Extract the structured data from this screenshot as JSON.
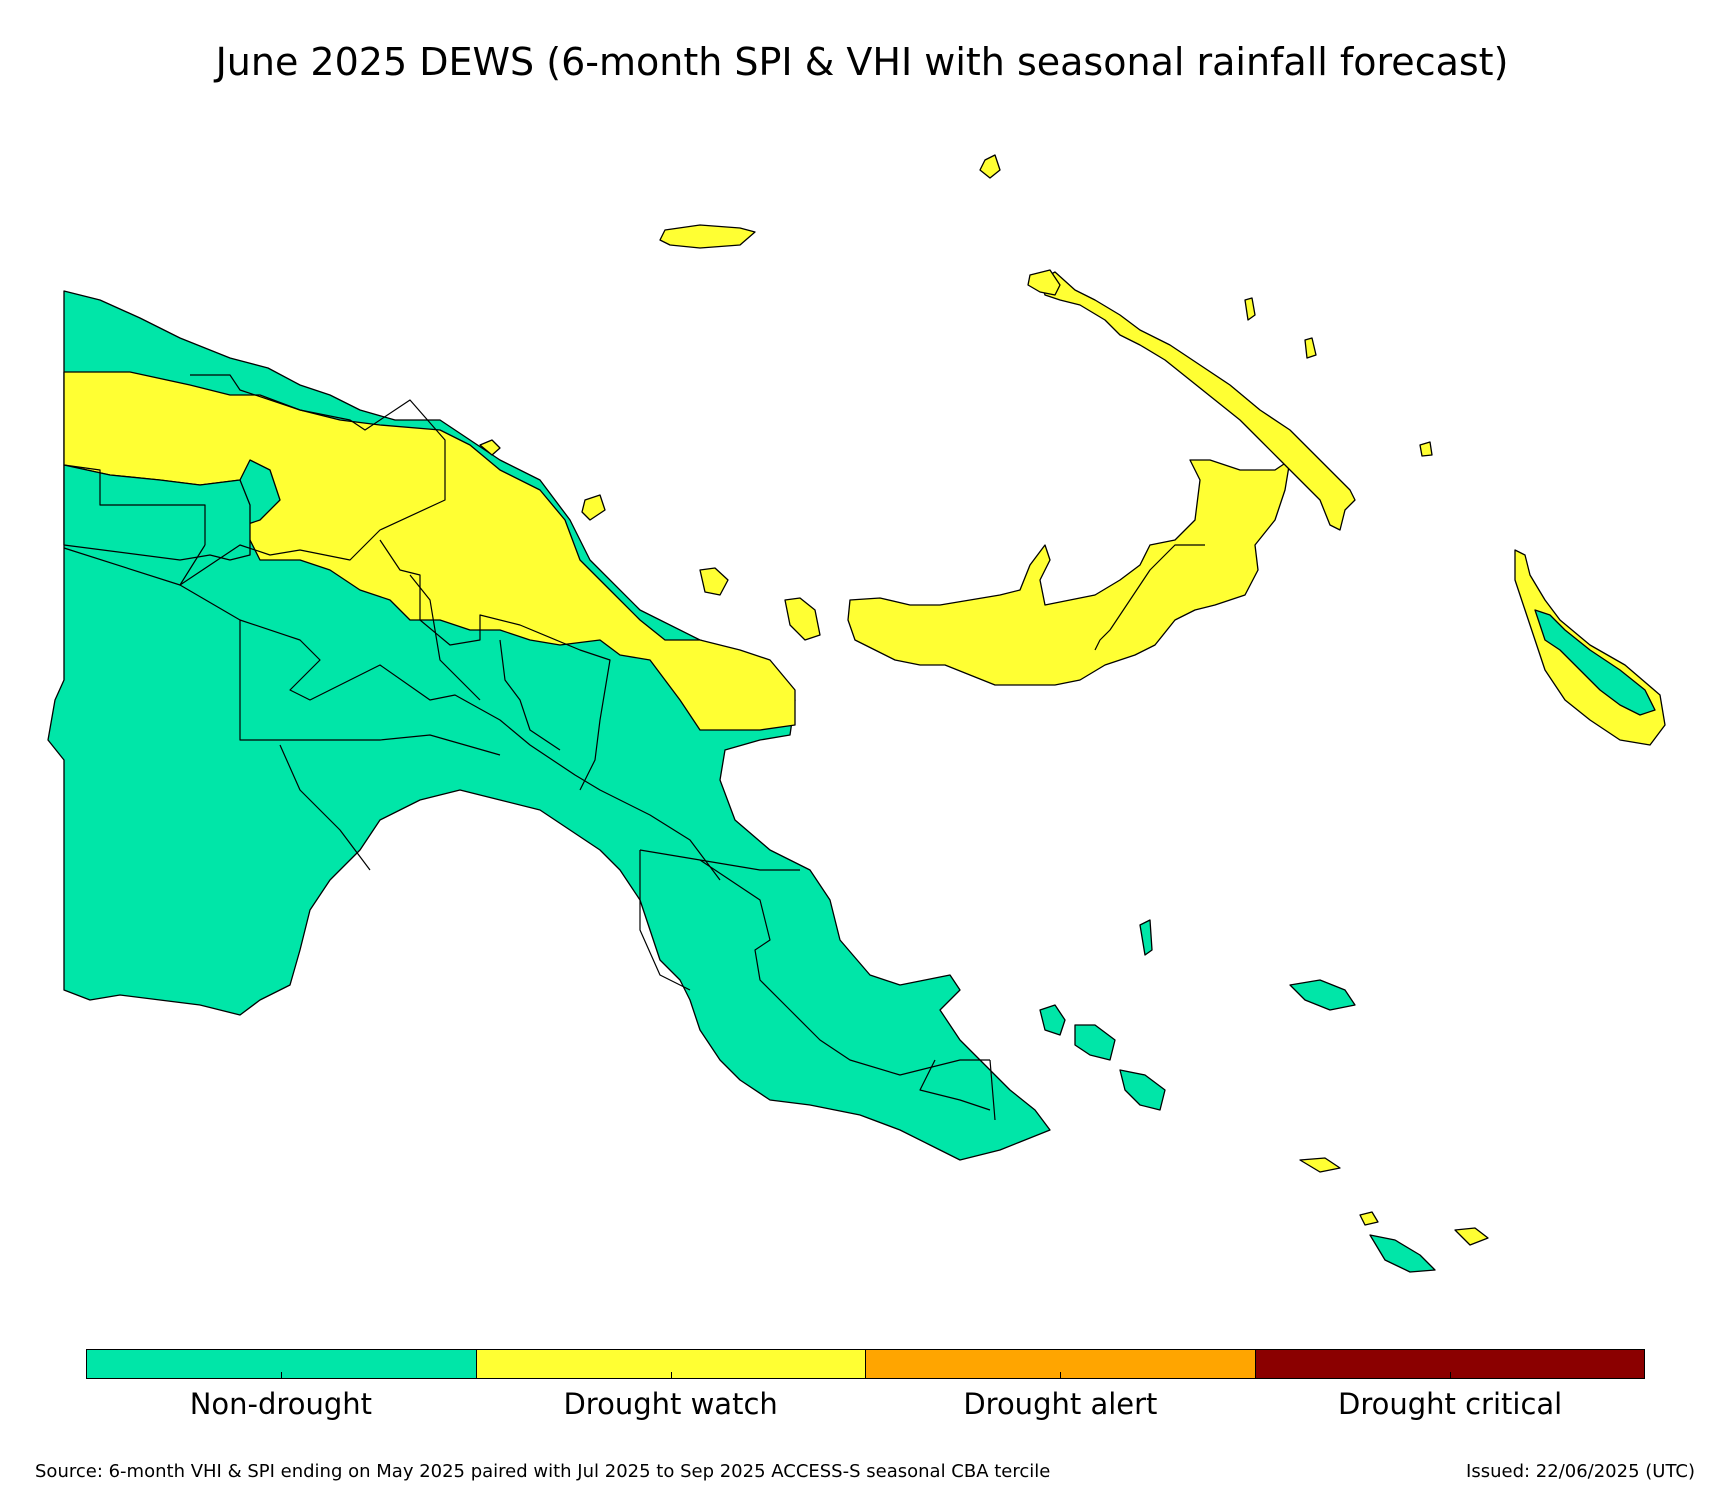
{
  "title": "June 2025 DEWS (6-month SPI & VHI with seasonal rainfall forecast)",
  "colors": {
    "non_drought": "#00E6A8",
    "drought_watch": "#FFFF33",
    "drought_alert": "#FFA500",
    "drought_critical": "#8B0000",
    "border": "#000000"
  },
  "legend": {
    "categories": [
      {
        "label": "Non-drought",
        "color": "#00E6A8"
      },
      {
        "label": "Drought watch",
        "color": "#FFFF33"
      },
      {
        "label": "Drought alert",
        "color": "#FFA500"
      },
      {
        "label": "Drought critical",
        "color": "#8B0000"
      }
    ]
  },
  "footer": {
    "source": "Source: 6-month VHI & SPI ending on May 2025 paired with Jul 2025 to Sep 2025 ACCESS-S seasonal CBA tercile",
    "issued": "Issued: 22/06/2025 (UTC)"
  }
}
